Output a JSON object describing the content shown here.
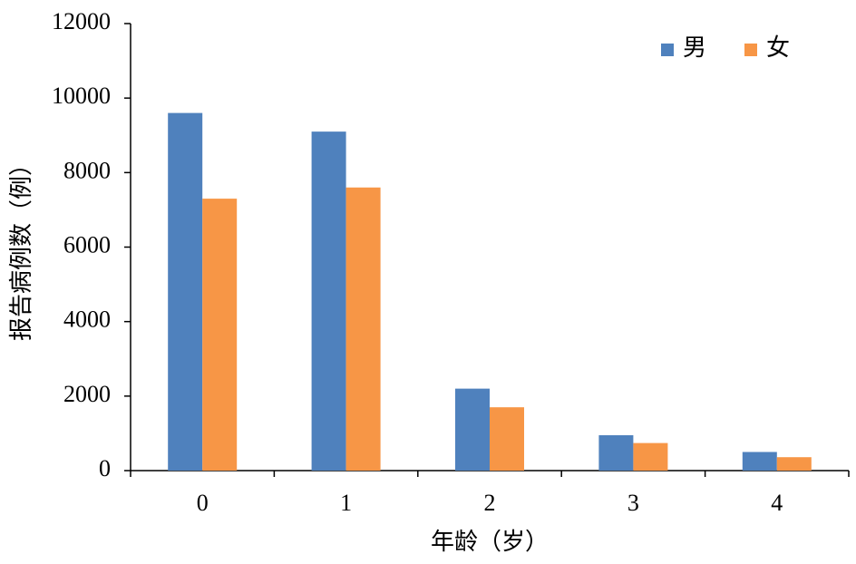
{
  "chart_data": {
    "type": "bar",
    "x_label": "年龄（岁）",
    "y_label": "报告病例数（例）",
    "categories": [
      "0",
      "1",
      "2",
      "3",
      "4"
    ],
    "series": [
      {
        "name": "男",
        "color": "#4f81bd",
        "values": [
          9600,
          9100,
          2200,
          950,
          500
        ]
      },
      {
        "name": "女",
        "color": "#f79646",
        "values": [
          7300,
          7600,
          1700,
          740,
          360
        ]
      }
    ],
    "ylim": [
      0,
      12000
    ],
    "yticks": [
      0,
      2000,
      4000,
      6000,
      8000,
      10000,
      12000
    ],
    "grid": false,
    "legend": "top-right"
  }
}
